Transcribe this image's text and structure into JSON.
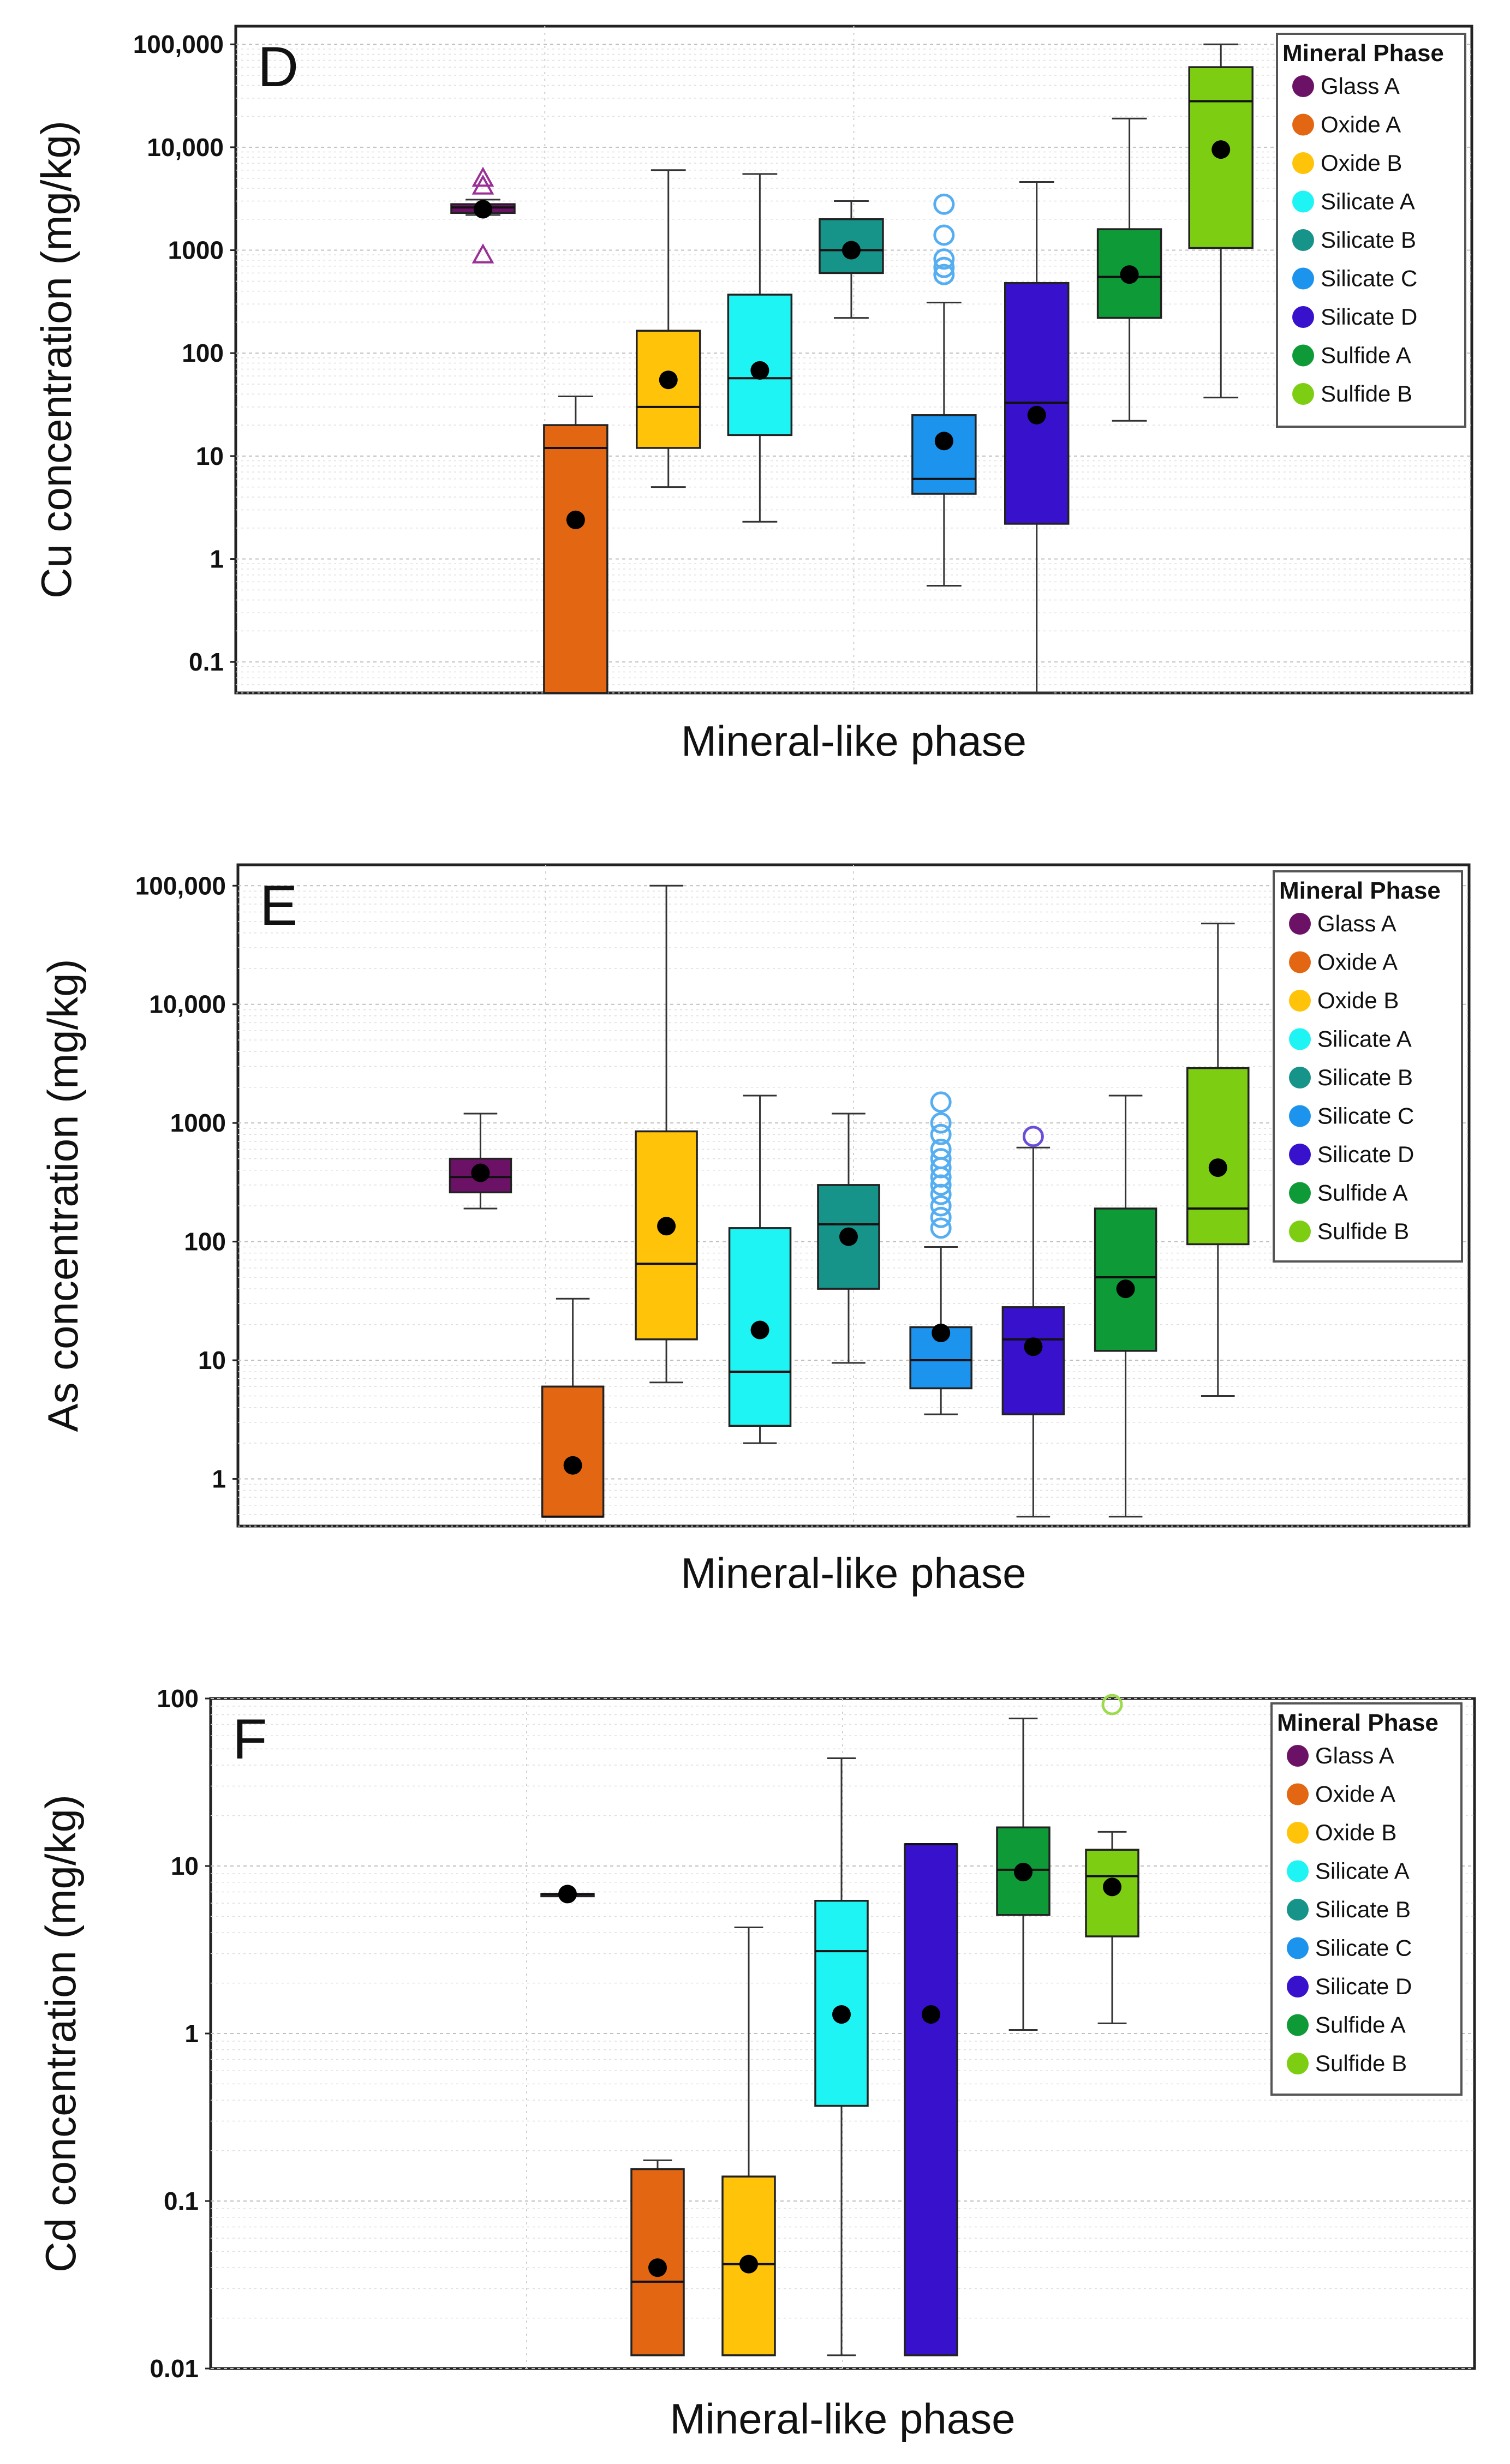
{
  "chart_data": [
    {
      "type": "box",
      "panel_label": "D",
      "title": "",
      "xlabel": "Mineral-like phase",
      "ylabel": "Cu concentration (mg/kg)",
      "yscale": "log",
      "ylim": [
        0.05,
        150000
      ],
      "yticks": [
        {
          "value": 0.1,
          "label": "0.1"
        },
        {
          "value": 1,
          "label": "1"
        },
        {
          "value": 10,
          "label": "10"
        },
        {
          "value": 100,
          "label": "100"
        },
        {
          "value": 1000,
          "label": "1000"
        },
        {
          "value": 10000,
          "label": "10,000"
        },
        {
          "value": 100000,
          "label": "100,000"
        }
      ],
      "legend": {
        "title": "Mineral Phase",
        "position": "top-right"
      },
      "categories": [
        "Glass A",
        "Oxide A",
        "Oxide B",
        "Silicate A",
        "Silicate B",
        "Silicate C",
        "Silicate D",
        "Sulfide A",
        "Sulfide B"
      ],
      "colors": [
        "#6b1267",
        "#e36612",
        "#ffc30a",
        "#1ff4f4",
        "#17948a",
        "#1c93ec",
        "#3811cc",
        "#0f9a38",
        "#7dce12"
      ],
      "series": [
        {
          "name": "Glass A",
          "whisker_low": 2200,
          "q1": 2300,
          "median": 2600,
          "q3": 2800,
          "whisker_high": 3100,
          "mean": 2500,
          "outliers": [
            900,
            4200,
            5000
          ],
          "outlier_marker": "triangle"
        },
        {
          "name": "Oxide A",
          "whisker_low": 0.05,
          "q1": 0.05,
          "median": 12,
          "q3": 20,
          "whisker_high": 38,
          "mean": 2.4,
          "outliers": [],
          "outlier_marker": "circle"
        },
        {
          "name": "Oxide B",
          "whisker_low": 5,
          "q1": 12,
          "median": 30,
          "q3": 165,
          "whisker_high": 6000,
          "mean": 55,
          "outliers": [],
          "outlier_marker": "circle"
        },
        {
          "name": "Silicate A",
          "whisker_low": 2.3,
          "q1": 16,
          "median": 57,
          "q3": 370,
          "whisker_high": 5500,
          "mean": 68,
          "outliers": [],
          "outlier_marker": "circle"
        },
        {
          "name": "Silicate B",
          "whisker_low": 220,
          "q1": 600,
          "median": 1000,
          "q3": 2000,
          "whisker_high": 3000,
          "mean": 1000,
          "outliers": [],
          "outlier_marker": "circle"
        },
        {
          "name": "Silicate C",
          "whisker_low": 0.55,
          "q1": 4.3,
          "median": 6,
          "q3": 25,
          "whisker_high": 310,
          "mean": 14,
          "outliers": [
            580,
            680,
            820,
            1400,
            2800
          ],
          "outlier_marker": "circle"
        },
        {
          "name": "Silicate D",
          "whisker_low": 0.05,
          "q1": 2.2,
          "median": 33,
          "q3": 480,
          "whisker_high": 4600,
          "mean": 25,
          "outliers": [],
          "outlier_marker": "circle"
        },
        {
          "name": "Sulfide A",
          "whisker_low": 22,
          "q1": 220,
          "median": 550,
          "q3": 1600,
          "whisker_high": 19000,
          "mean": 580,
          "outliers": [],
          "outlier_marker": "circle"
        },
        {
          "name": "Sulfide B",
          "whisker_low": 37,
          "q1": 1050,
          "median": 28000,
          "q3": 60000,
          "whisker_high": 100000,
          "mean": 9500,
          "outliers": [],
          "outlier_marker": "circle"
        }
      ]
    },
    {
      "type": "box",
      "panel_label": "E",
      "title": "",
      "xlabel": "Mineral-like phase",
      "ylabel": "As concentration (mg/kg)",
      "yscale": "log",
      "ylim": [
        0.4,
        150000
      ],
      "yticks": [
        {
          "value": 1,
          "label": "1"
        },
        {
          "value": 10,
          "label": "10"
        },
        {
          "value": 100,
          "label": "100"
        },
        {
          "value": 1000,
          "label": "1000"
        },
        {
          "value": 10000,
          "label": "10,000"
        },
        {
          "value": 100000,
          "label": "100,000"
        }
      ],
      "legend": {
        "title": "Mineral Phase",
        "position": "top-right"
      },
      "categories": [
        "Glass A",
        "Oxide A",
        "Oxide B",
        "Silicate A",
        "Silicate B",
        "Silicate C",
        "Silicate D",
        "Sulfide A",
        "Sulfide B"
      ],
      "colors": [
        "#6b1267",
        "#e36612",
        "#ffc30a",
        "#1ff4f4",
        "#17948a",
        "#1c93ec",
        "#3811cc",
        "#0f9a38",
        "#7dce12"
      ],
      "series": [
        {
          "name": "Glass A",
          "whisker_low": 190,
          "q1": 260,
          "median": 350,
          "q3": 500,
          "whisker_high": 1200,
          "mean": 380,
          "outliers": [],
          "outlier_marker": "circle"
        },
        {
          "name": "Oxide A",
          "whisker_low": 0.48,
          "q1": 0.48,
          "median": 0.48,
          "q3": 6,
          "whisker_high": 33,
          "mean": 1.3,
          "outliers": [],
          "outlier_marker": "circle"
        },
        {
          "name": "Oxide B",
          "whisker_low": 6.5,
          "q1": 15,
          "median": 65,
          "q3": 850,
          "whisker_high": 100000,
          "mean": 135,
          "outliers": [],
          "outlier_marker": "circle"
        },
        {
          "name": "Silicate A",
          "whisker_low": 2,
          "q1": 2.8,
          "median": 8,
          "q3": 130,
          "whisker_high": 1700,
          "mean": 18,
          "outliers": [],
          "outlier_marker": "circle"
        },
        {
          "name": "Silicate B",
          "whisker_low": 9.5,
          "q1": 40,
          "median": 140,
          "q3": 300,
          "whisker_high": 1200,
          "mean": 110,
          "outliers": [],
          "outlier_marker": "circle"
        },
        {
          "name": "Silicate C",
          "whisker_low": 3.5,
          "q1": 5.8,
          "median": 10,
          "q3": 19,
          "whisker_high": 90,
          "mean": 17,
          "outliers": [
            130,
            160,
            200,
            250,
            300,
            350,
            420,
            500,
            600,
            800,
            1000,
            1500
          ],
          "outlier_marker": "circle"
        },
        {
          "name": "Silicate D",
          "whisker_low": 0.48,
          "q1": 3.5,
          "median": 15,
          "q3": 28,
          "whisker_high": 620,
          "mean": 13,
          "outliers": [
            770
          ],
          "outlier_marker": "circle"
        },
        {
          "name": "Sulfide A",
          "whisker_low": 0.48,
          "q1": 12,
          "median": 50,
          "q3": 190,
          "whisker_high": 1700,
          "mean": 40,
          "outliers": [],
          "outlier_marker": "circle"
        },
        {
          "name": "Sulfide B",
          "whisker_low": 5,
          "q1": 95,
          "median": 190,
          "q3": 2900,
          "whisker_high": 48000,
          "mean": 420,
          "outliers": [],
          "outlier_marker": "circle"
        }
      ]
    },
    {
      "type": "box",
      "panel_label": "F",
      "title": "",
      "xlabel": "Mineral-like phase",
      "ylabel": "Cd concentration (mg/kg)",
      "yscale": "log",
      "ylim": [
        0.01,
        100
      ],
      "yticks": [
        {
          "value": 0.01,
          "label": "0.01"
        },
        {
          "value": 0.1,
          "label": "0.1"
        },
        {
          "value": 1,
          "label": "1"
        },
        {
          "value": 10,
          "label": "10"
        },
        {
          "value": 100,
          "label": "100"
        }
      ],
      "legend": {
        "title": "Mineral Phase",
        "position": "top-right"
      },
      "categories": [
        "Glass A",
        "Oxide A",
        "Oxide B",
        "Silicate A",
        "Silicate B",
        "Silicate C",
        "Silicate D",
        "Sulfide A",
        "Sulfide B"
      ],
      "colors": [
        "#6b1267",
        "#e36612",
        "#ffc30a",
        "#1ff4f4",
        "#17948a",
        "#1c93ec",
        "#3811cc",
        "#0f9a38",
        "#7dce12"
      ],
      "series": [
        {
          "name": "Glass A",
          "whisker_low": 6.8,
          "q1": 6.8,
          "median": 6.8,
          "q3": 6.8,
          "whisker_high": 6.8,
          "mean": 6.8,
          "outliers": [],
          "outlier_marker": "circle"
        },
        {
          "name": "Oxide A",
          "whisker_low": 0.012,
          "q1": 0.012,
          "median": 0.033,
          "q3": 0.155,
          "whisker_high": 0.175,
          "mean": 0.04,
          "outliers": [],
          "outlier_marker": "circle"
        },
        {
          "name": "Oxide B",
          "whisker_low": 0.012,
          "q1": 0.012,
          "median": 0.042,
          "q3": 0.14,
          "whisker_high": 4.3,
          "mean": 0.042,
          "outliers": [],
          "outlier_marker": "circle"
        },
        {
          "name": "Silicate A",
          "whisker_low": 0.012,
          "q1": 0.37,
          "median": 3.1,
          "q3": 6.2,
          "whisker_high": 44,
          "mean": 1.3,
          "outliers": [],
          "outlier_marker": "circle"
        },
        {
          "name": "Silicate D",
          "whisker_low": 0.012,
          "q1": 0.012,
          "median": 13.5,
          "q3": 13.5,
          "whisker_high": 13.5,
          "mean": 1.3,
          "outliers": [],
          "outlier_marker": "circle"
        },
        {
          "name": "Sulfide A",
          "whisker_low": 1.05,
          "q1": 5.1,
          "median": 9.5,
          "q3": 17,
          "whisker_high": 76,
          "mean": 9.2,
          "outliers": [],
          "outlier_marker": "circle"
        },
        {
          "name": "Sulfide B",
          "whisker_low": 1.15,
          "q1": 3.8,
          "median": 8.7,
          "q3": 12.5,
          "whisker_high": 16,
          "mean": 7.5,
          "outliers": [
            92
          ],
          "outlier_marker": "circle"
        }
      ]
    }
  ]
}
